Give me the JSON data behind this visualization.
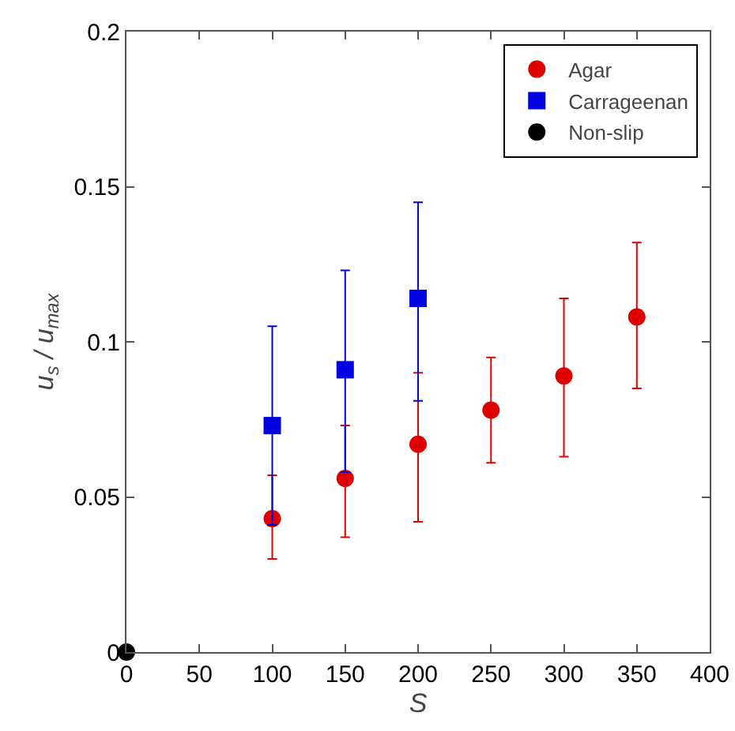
{
  "chart_data": {
    "type": "scatter",
    "xlabel": "S",
    "ylabel": "u$_{s}$ / u$_{max}$",
    "xlim": [
      0,
      400
    ],
    "xticks": [
      0,
      50,
      100,
      150,
      200,
      250,
      300,
      350,
      400
    ],
    "ylim": [
      0,
      0.2
    ],
    "yticks": [
      0,
      0.05,
      0.1,
      0.15,
      0.2
    ],
    "legend": "top right",
    "grid": false,
    "series": [
      {
        "name": "Agar",
        "color": "#e00000",
        "marker": "circle",
        "x": [
          100,
          150,
          200,
          250,
          300,
          350
        ],
        "values": [
          0.043,
          0.056,
          0.067,
          0.078,
          0.089,
          0.108
        ],
        "errors": [
          [
            0.03,
            0.057
          ],
          [
            0.037,
            0.073
          ],
          [
            0.042,
            0.09
          ],
          [
            0.061,
            0.095
          ],
          [
            0.063,
            0.114
          ],
          [
            0.085,
            0.132
          ]
        ]
      },
      {
        "name": "Carrageenan",
        "color": "#0000e0",
        "marker": "square",
        "x": [
          100,
          150,
          200
        ],
        "values": [
          0.073,
          0.091,
          0.114
        ],
        "errors": [
          [
            0.041,
            0.105
          ],
          [
            0.058,
            0.123
          ],
          [
            0.081,
            0.145
          ]
        ]
      },
      {
        "name": "Non-slip",
        "color": "#000000",
        "marker": "circle",
        "x": [
          0
        ],
        "values": [
          0
        ]
      }
    ]
  }
}
